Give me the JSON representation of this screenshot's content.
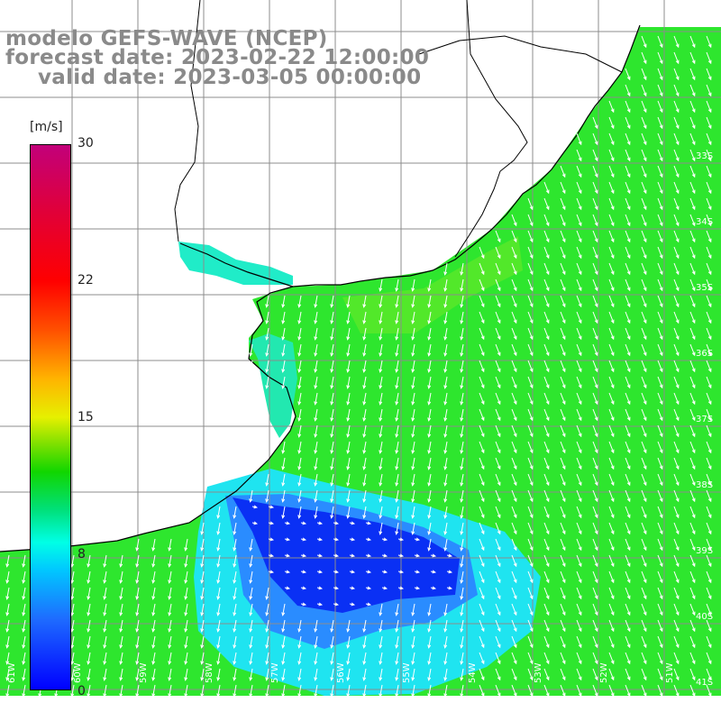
{
  "title": {
    "line1": "modelo GEFS-WAVE (NCEP)",
    "line2": "forecast date: 2023-02-22 12:00:00",
    "line3": "valid date: 2023-03-05 00:00:00"
  },
  "colorbar": {
    "unit": "[m/s]",
    "ticks": [
      "30",
      "22",
      "15",
      "8",
      "0"
    ],
    "colors": [
      "#0000ff",
      "#1e6cff",
      "#00c8ff",
      "#00ffe6",
      "#00e07a",
      "#11d600",
      "#7ce000",
      "#e6f000",
      "#ffb400",
      "#ff5000",
      "#ff0000",
      "#c2007a"
    ]
  },
  "map": {
    "lat_labels": [
      "33S",
      "34S",
      "35S",
      "36S",
      "37S",
      "38S",
      "39S",
      "40S",
      "41S"
    ],
    "lon_labels": [
      "61W",
      "60W",
      "59W",
      "58W",
      "57W",
      "56W",
      "55W",
      "54W",
      "53W",
      "52W",
      "51W"
    ],
    "ocean_color": "#2ee62e",
    "land_color": "#ffffff",
    "grid_color": "#8c8c8c",
    "coast_color": "#000000"
  }
}
